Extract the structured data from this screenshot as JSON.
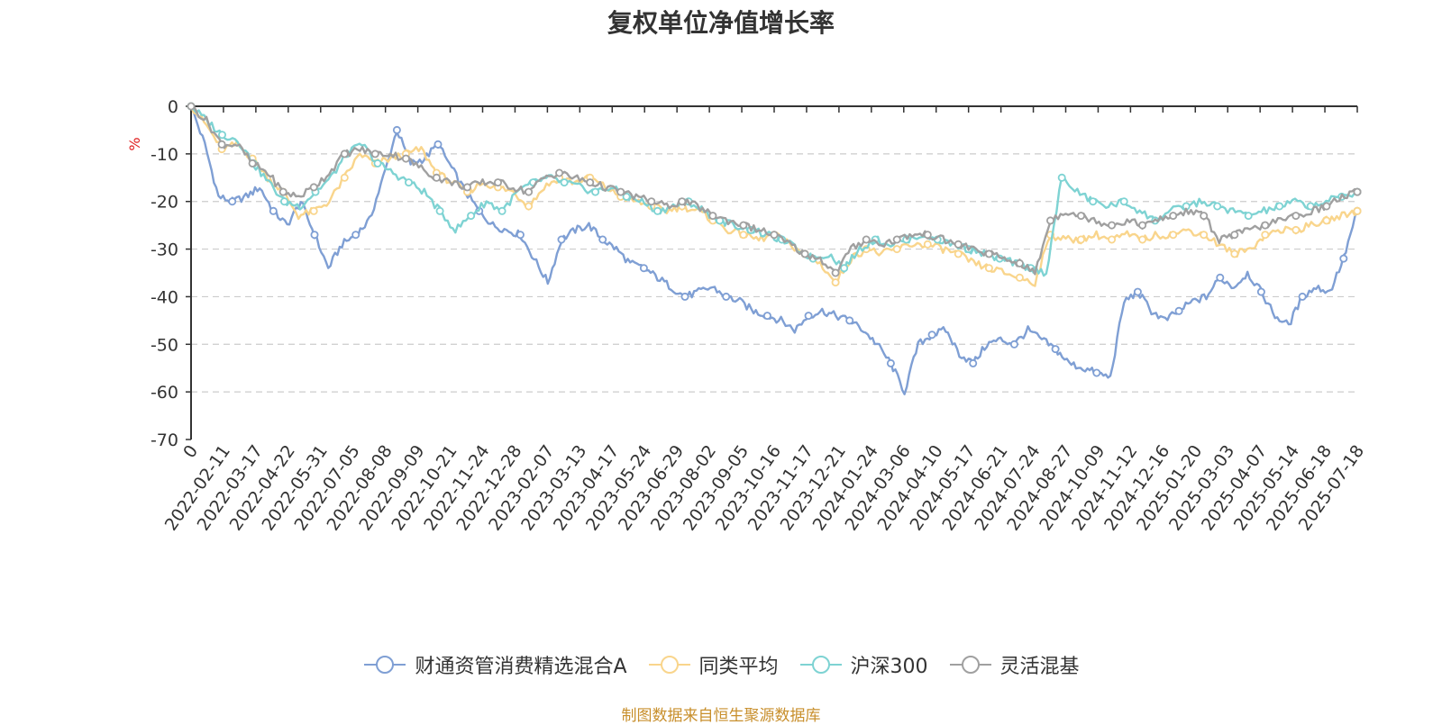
{
  "title": "复权单位净值增长率",
  "source_note": "制图数据来自恒生聚源数据库",
  "chart_data": {
    "type": "line",
    "title": "复权单位净值增长率",
    "ylabel": "%",
    "xlabel": "",
    "ylim": [
      -70,
      0
    ],
    "y_ticks": [
      0,
      -10,
      -20,
      -30,
      -40,
      -50,
      -60,
      -70
    ],
    "grid": true,
    "legend_position": "bottom",
    "x_tick_labels": [
      "0",
      "2022-02-11",
      "2022-03-17",
      "2022-04-22",
      "2022-05-31",
      "2022-07-05",
      "2022-08-08",
      "2022-09-09",
      "2022-10-21",
      "2022-11-24",
      "2022-12-28",
      "2023-02-07",
      "2023-03-13",
      "2023-04-17",
      "2023-05-24",
      "2023-06-29",
      "2023-08-02",
      "2023-09-05",
      "2023-10-16",
      "2023-11-17",
      "2023-12-21",
      "2024-01-24",
      "2024-03-06",
      "2024-04-10",
      "2024-05-17",
      "2024-06-21",
      "2024-07-24",
      "2024-08-27",
      "2024-10-09",
      "2024-11-12",
      "2024-12-16",
      "2025-01-20",
      "2025-03-03",
      "2025-04-07",
      "2025-05-14",
      "2025-06-18",
      "2025-07-18"
    ],
    "series": [
      {
        "name": "财通资管消费精选混合A",
        "color": "#7f9fd4",
        "values": [
          0,
          -8,
          -19,
          -20,
          -19,
          -17,
          -22,
          -25,
          -20,
          -27,
          -34,
          -29,
          -27,
          -24,
          -15,
          -5,
          -12,
          -11,
          -8,
          -13,
          -18,
          -22,
          -25,
          -26,
          -27,
          -32,
          -37,
          -28,
          -26,
          -25,
          -28,
          -30,
          -33,
          -34,
          -36,
          -38,
          -40,
          -39,
          -38,
          -40,
          -41,
          -43,
          -44,
          -45,
          -47,
          -44,
          -43,
          -44,
          -45,
          -47,
          -50,
          -54,
          -60,
          -50,
          -48,
          -47,
          -52,
          -54,
          -50,
          -49,
          -50,
          -47,
          -49,
          -51,
          -54,
          -55,
          -56,
          -57,
          -41,
          -39,
          -43,
          -45,
          -43,
          -41,
          -40,
          -36,
          -38,
          -35,
          -39,
          -44,
          -46,
          -40,
          -38,
          -39,
          -32,
          -22
        ]
      },
      {
        "name": "同类平均",
        "color": "#f9d58c",
        "values": [
          0,
          -4,
          -9,
          -8,
          -11,
          -15,
          -18,
          -23,
          -22,
          -20,
          -15,
          -10,
          -12,
          -11,
          -10,
          -9,
          -14,
          -16,
          -18,
          -16,
          -17,
          -18,
          -21,
          -17,
          -15,
          -16,
          -15,
          -17,
          -19,
          -20,
          -21,
          -22,
          -21,
          -22,
          -24,
          -26,
          -27,
          -28,
          -27,
          -29,
          -31,
          -33,
          -37,
          -32,
          -30,
          -31,
          -30,
          -29,
          -29,
          -30,
          -31,
          -33,
          -34,
          -35,
          -36,
          -37,
          -27,
          -28,
          -28,
          -27,
          -28,
          -27,
          -28,
          -27,
          -27,
          -26,
          -27,
          -29,
          -31,
          -30,
          -27,
          -26,
          -26,
          -25,
          -24,
          -23,
          -22
        ]
      },
      {
        "name": "沪深300",
        "color": "#7ed3d3",
        "values": [
          0,
          -3,
          -6,
          -7,
          -12,
          -16,
          -20,
          -21,
          -18,
          -15,
          -10,
          -8,
          -12,
          -14,
          -16,
          -18,
          -22,
          -26,
          -23,
          -20,
          -22,
          -18,
          -16,
          -15,
          -16,
          -17,
          -18,
          -17,
          -19,
          -20,
          -22,
          -21,
          -20,
          -22,
          -24,
          -25,
          -26,
          -27,
          -28,
          -30,
          -32,
          -31,
          -34,
          -30,
          -28,
          -29,
          -28,
          -27,
          -28,
          -29,
          -30,
          -31,
          -32,
          -33,
          -34,
          -35,
          -15,
          -18,
          -20,
          -21,
          -20,
          -22,
          -24,
          -22,
          -21,
          -20,
          -21,
          -22,
          -23,
          -22,
          -21,
          -20,
          -21,
          -20,
          -19,
          -18
        ]
      },
      {
        "name": "灵活混基",
        "color": "#a0a0a0",
        "values": [
          0,
          -3,
          -8,
          -8,
          -12,
          -14,
          -18,
          -19,
          -17,
          -14,
          -10,
          -9,
          -10,
          -10,
          -11,
          -13,
          -15,
          -16,
          -17,
          -16,
          -16,
          -17,
          -18,
          -15,
          -14,
          -15,
          -16,
          -17,
          -18,
          -19,
          -20,
          -21,
          -20,
          -21,
          -23,
          -24,
          -25,
          -26,
          -27,
          -29,
          -31,
          -32,
          -35,
          -30,
          -28,
          -29,
          -28,
          -27,
          -27,
          -28,
          -29,
          -30,
          -31,
          -32,
          -33,
          -35,
          -24,
          -22,
          -23,
          -24,
          -25,
          -24,
          -25,
          -24,
          -23,
          -22,
          -23,
          -28,
          -27,
          -26,
          -25,
          -24,
          -23,
          -22,
          -21,
          -19,
          -18
        ]
      }
    ]
  }
}
